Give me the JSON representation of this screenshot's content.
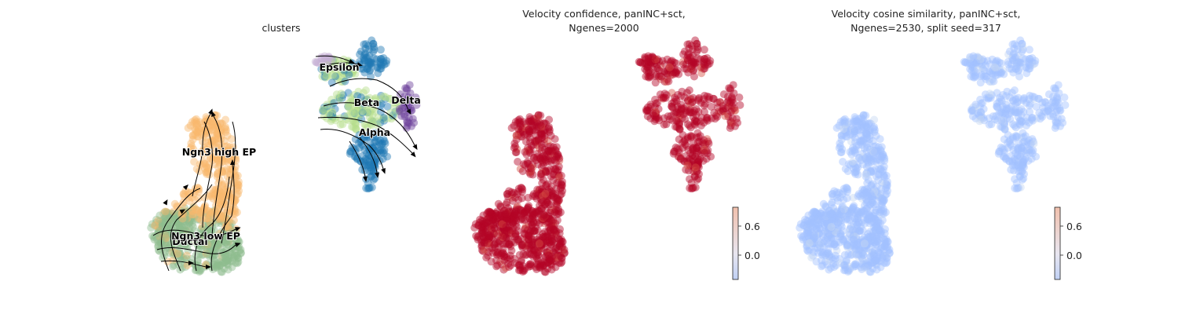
{
  "chart_data": [
    {
      "type": "scatter",
      "title": "clusters",
      "color_by": "clusters",
      "overlay": "velocity-streamlines",
      "clusters": [
        {
          "name": "Ductal",
          "label": "Ductal",
          "color": "#8fbc8f"
        },
        {
          "name": "Ngn3 low EP",
          "label": "Ngn3 low EP",
          "color": "#8fbc8f"
        },
        {
          "name": "Ngn3 high EP",
          "label": "Ngn3 high EP",
          "color": "#f9b86d"
        },
        {
          "name": "Epsilon",
          "label": "Epsilon",
          "color": "#c5b0d5"
        },
        {
          "name": "Beta",
          "label": "Beta",
          "color": "#b5de8c"
        },
        {
          "name": "Alpha",
          "label": "Alpha",
          "color": "#1f77b4"
        },
        {
          "name": "Delta",
          "label": "Delta",
          "color": "#6a3d9a"
        }
      ]
    },
    {
      "type": "scatter",
      "title_lines": [
        "Velocity confidence, panINC+sct,",
        "Ngenes=2000"
      ],
      "colormap": "coolwarm",
      "colorbar": {
        "ticks": [
          0.6,
          0.0
        ],
        "tick_labels": [
          "0.6",
          "0.0"
        ],
        "range": [
          -0.5,
          1.0
        ]
      }
    },
    {
      "type": "scatter",
      "title_lines": [
        "Velocity cosine similarity, panINC+sct,",
        "Ngenes=2530, split seed=317"
      ],
      "colormap": "coolwarm",
      "colorbar": {
        "ticks": [
          0.6,
          0.0
        ],
        "tick_labels": [
          "0.6",
          "0.0"
        ],
        "range": [
          -0.5,
          1.0
        ]
      }
    }
  ],
  "colors": {
    "confidence_point": "#b40426",
    "confidence_point_light": "#d65244",
    "cosine_point": "#a1c0ff",
    "cosine_point_light": "#c5d6f2"
  }
}
